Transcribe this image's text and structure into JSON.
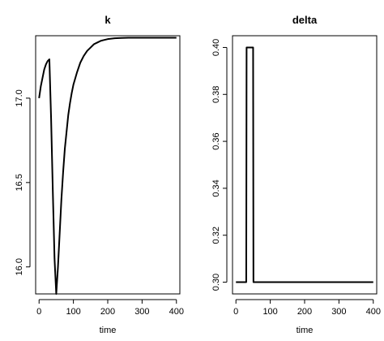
{
  "chart_data": [
    {
      "type": "line",
      "title": "k",
      "xlabel": "time",
      "ylabel": "",
      "xlim": [
        -10,
        410
      ],
      "ylim": [
        15.84,
        17.37
      ],
      "xticks": [
        0,
        100,
        200,
        300,
        400
      ],
      "xtick_labels": [
        "0",
        "100",
        "200",
        "300",
        "400"
      ],
      "yticks": [
        16.0,
        16.5,
        17.0
      ],
      "ytick_labels": [
        "16.0",
        "16.5",
        "17.0"
      ],
      "grid": false,
      "x": [
        0,
        5,
        10,
        15,
        20,
        25,
        30,
        35,
        40,
        45,
        50,
        55,
        60,
        65,
        70,
        75,
        80,
        85,
        90,
        95,
        100,
        110,
        120,
        130,
        140,
        150,
        160,
        170,
        180,
        190,
        200,
        220,
        240,
        260,
        280,
        300,
        320,
        340,
        360,
        380,
        400
      ],
      "series": [
        {
          "values": [
            17.0,
            17.07,
            17.12,
            17.17,
            17.2,
            17.22,
            17.23,
            16.88,
            16.45,
            16.05,
            15.84,
            16.0,
            16.2,
            16.4,
            16.56,
            16.7,
            16.8,
            16.9,
            16.97,
            17.03,
            17.08,
            17.15,
            17.21,
            17.25,
            17.28,
            17.3,
            17.32,
            17.33,
            17.34,
            17.345,
            17.35,
            17.355,
            17.357,
            17.358,
            17.358,
            17.358,
            17.358,
            17.358,
            17.358,
            17.358,
            17.358
          ]
        }
      ]
    },
    {
      "type": "line",
      "title": "delta",
      "xlabel": "time",
      "ylabel": "",
      "xlim": [
        -10,
        410
      ],
      "ylim": [
        0.295,
        0.405
      ],
      "xticks": [
        0,
        100,
        200,
        300,
        400
      ],
      "xtick_labels": [
        "0",
        "100",
        "200",
        "300",
        "400"
      ],
      "yticks": [
        0.3,
        0.32,
        0.34,
        0.36,
        0.38,
        0.4
      ],
      "ytick_labels": [
        "0.30",
        "0.32",
        "0.34",
        "0.36",
        "0.38",
        "0.40"
      ],
      "grid": false,
      "x": [
        0,
        30,
        31,
        50,
        51,
        400
      ],
      "series": [
        {
          "values": [
            0.3,
            0.3,
            0.4,
            0.4,
            0.3,
            0.3
          ]
        }
      ]
    }
  ]
}
